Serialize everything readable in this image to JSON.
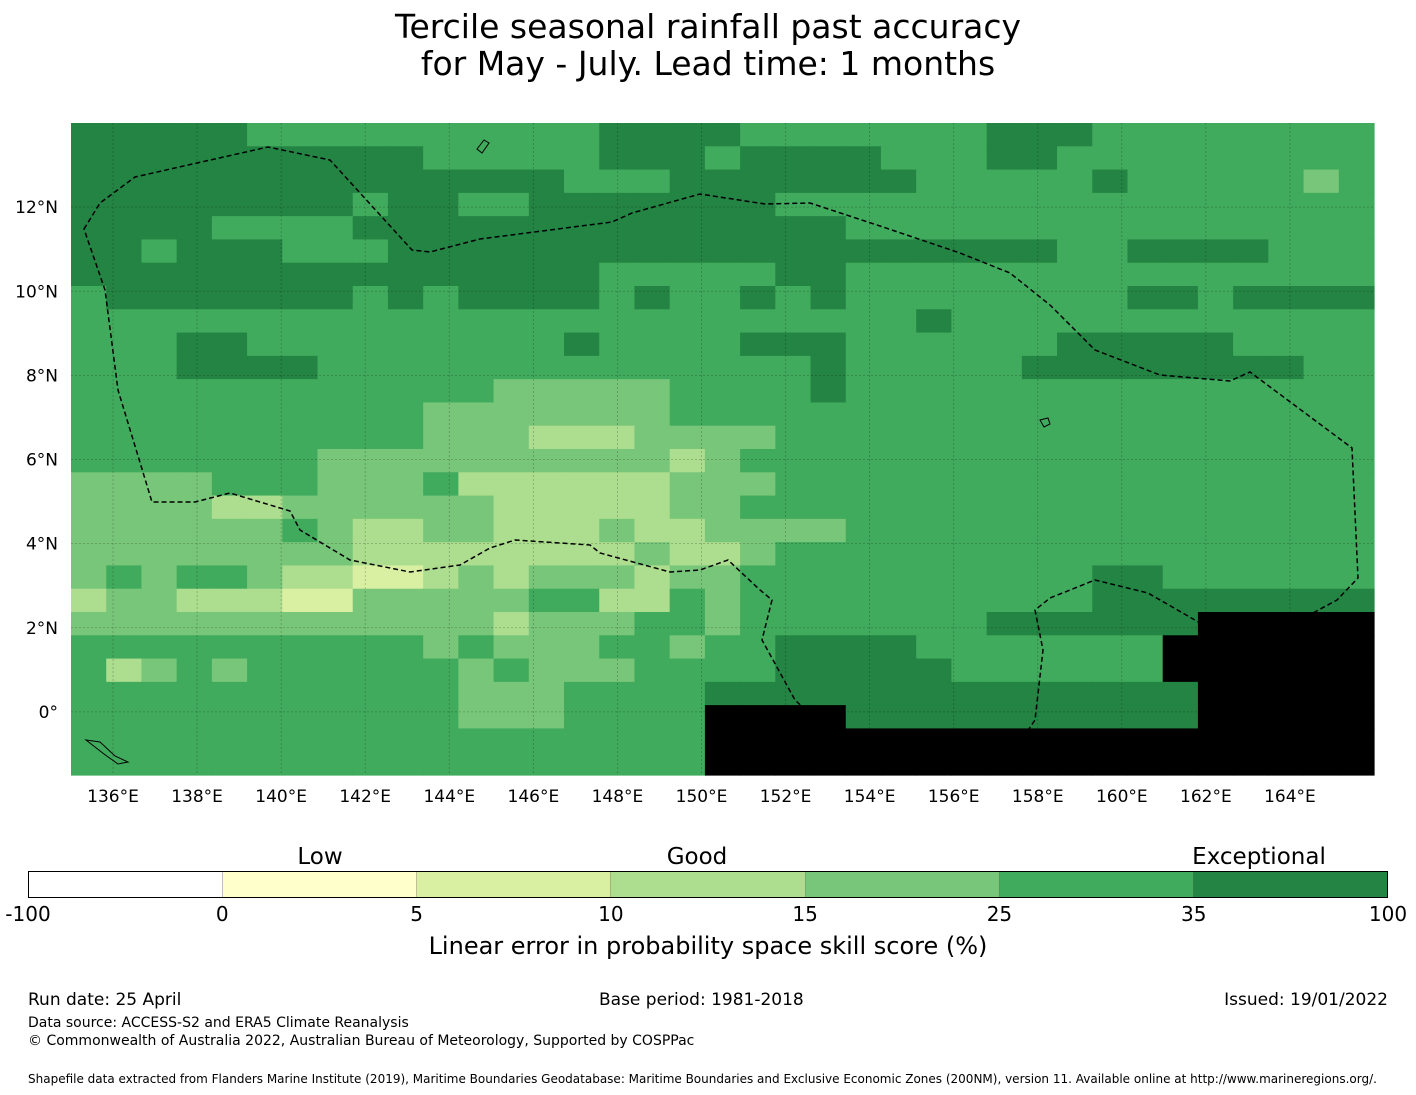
{
  "title": {
    "line1": "Tercile seasonal rainfall past accuracy",
    "line2": "for May - July. Lead time: 1 months"
  },
  "map": {
    "lon_range": [
      135,
      166
    ],
    "lat_range": [
      -1.5,
      14
    ],
    "lon_ticks": [
      "136°E",
      "138°E",
      "140°E",
      "142°E",
      "144°E",
      "146°E",
      "148°E",
      "150°E",
      "152°E",
      "154°E",
      "156°E",
      "158°E",
      "160°E",
      "162°E",
      "164°E"
    ],
    "lat_ticks": [
      "12°N",
      "10°N",
      "8°N",
      "6°N",
      "4°N",
      "2°N",
      "0°"
    ],
    "grid_columns": 37,
    "grid_rows": 28,
    "class_grid": [
      "6666655555555556666555555566655555555",
      "6666666666555556665666655566555555555",
      "6666666666666655566666665555565555545",
      "6666666656655666666655555555555555555",
      "6666555566666666666666555555555555555",
      "6656665556666666666666666666556666555",
      "6666666666666665555566555555555555555",
      "5666666656566665655656555555556656666",
      "5555555555555555555555556555555555555",
      "5556655555555565555666555555666665555",
      "5556666555555555555556555556666666655",
      "5555555555554444455556555555555555555",
      "5555555555444444455555555555555555555",
      "5555555555444333444455555555555555555",
      "5555555444444444434555555555555555555",
      "4444555444533333344455555555555555555",
      "4444334444443333344555555555555555555",
      "4444445433443334334444555555555555555",
      "4444444433333333433455555555555555555",
      "4545543322343444344555555555566555555",
      "3443332244444553354555555555566666666",
      "4444444444443444554555555566666677777",
      "5555555555454445545566665555555777777",
      "5345455555545444555566666555555777777",
      "5555555555544455556666666666666677777",
      "5555555555544455557777666666666677777",
      "5555555555555555557777777777777777777",
      "5555555555555555557777777777777777777"
    ],
    "colors": [
      "#ffffff",
      "#ffffcc",
      "#d9f0a3",
      "#addd8e",
      "#78c679",
      "#41ab5d",
      "#238443"
    ]
  },
  "colorbar": {
    "ticks": [
      "-100",
      "0",
      "5",
      "10",
      "15",
      "25",
      "35",
      "100"
    ],
    "categories": [
      "Low",
      "Good",
      "Exceptional"
    ],
    "label": "Linear error in probability space skill score (%)"
  },
  "footer": {
    "run_date": "Run date: 25 April",
    "base_period": "Base period: 1981-2018",
    "issued": "Issued: 19/01/2022",
    "data_source": "Data source: ACCESS-S2 and ERA5 Climate Reanalysis",
    "copyright": "© Commonwealth of Australia 2022, Australian Bureau of Meteorology, Supported by COSPPac",
    "shapefile": "Shapefile data extracted from Flanders Marine Institute (2019), Maritime Boundaries Geodatabase: Maritime Boundaries and Exclusive Economic Zones (200NM), version 11. Available online at http://www.marineregions.org/."
  }
}
